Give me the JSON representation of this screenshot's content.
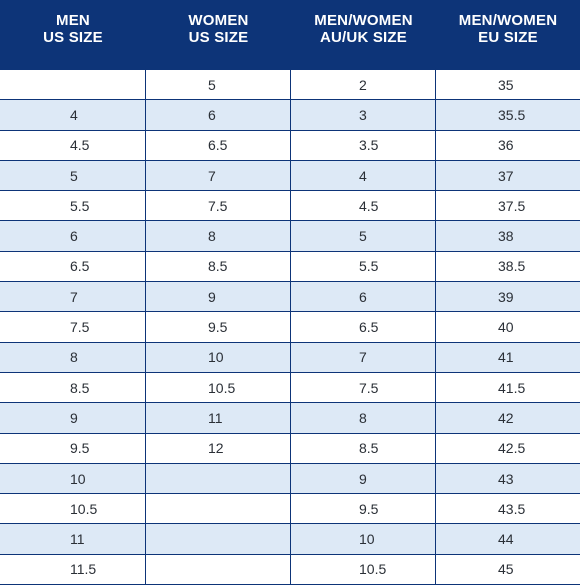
{
  "header": {
    "col1": [
      "MEN",
      "US SIZE"
    ],
    "col2": [
      "WOMEN",
      "US SIZE"
    ],
    "col3": [
      "MEN/WOMEN",
      "AU/UK SIZE"
    ],
    "col4": [
      "MEN/WOMEN",
      "EU SIZE"
    ]
  },
  "rows": [
    [
      "",
      "5",
      "2",
      "35"
    ],
    [
      "4",
      "6",
      "3",
      "35.5"
    ],
    [
      "4.5",
      "6.5",
      "3.5",
      "36"
    ],
    [
      "5",
      "7",
      "4",
      "37"
    ],
    [
      "5.5",
      "7.5",
      "4.5",
      "37.5"
    ],
    [
      "6",
      "8",
      "5",
      "38"
    ],
    [
      "6.5",
      "8.5",
      "5.5",
      "38.5"
    ],
    [
      "7",
      "9",
      "6",
      "39"
    ],
    [
      "7.5",
      "9.5",
      "6.5",
      "40"
    ],
    [
      "8",
      "10",
      "7",
      "41"
    ],
    [
      "8.5",
      "10.5",
      "7.5",
      "41.5"
    ],
    [
      "9",
      "11",
      "8",
      "42"
    ],
    [
      "9.5",
      "12",
      "8.5",
      "42.5"
    ],
    [
      "10",
      "",
      "9",
      "43"
    ],
    [
      "10.5",
      "",
      "9.5",
      "43.5"
    ],
    [
      "11",
      "",
      "10",
      "44"
    ],
    [
      "11.5",
      "",
      "10.5",
      "45"
    ]
  ],
  "colors": {
    "header_bg": "#0d3478",
    "stripe": "#dde9f6",
    "text": "#2a2f36"
  }
}
